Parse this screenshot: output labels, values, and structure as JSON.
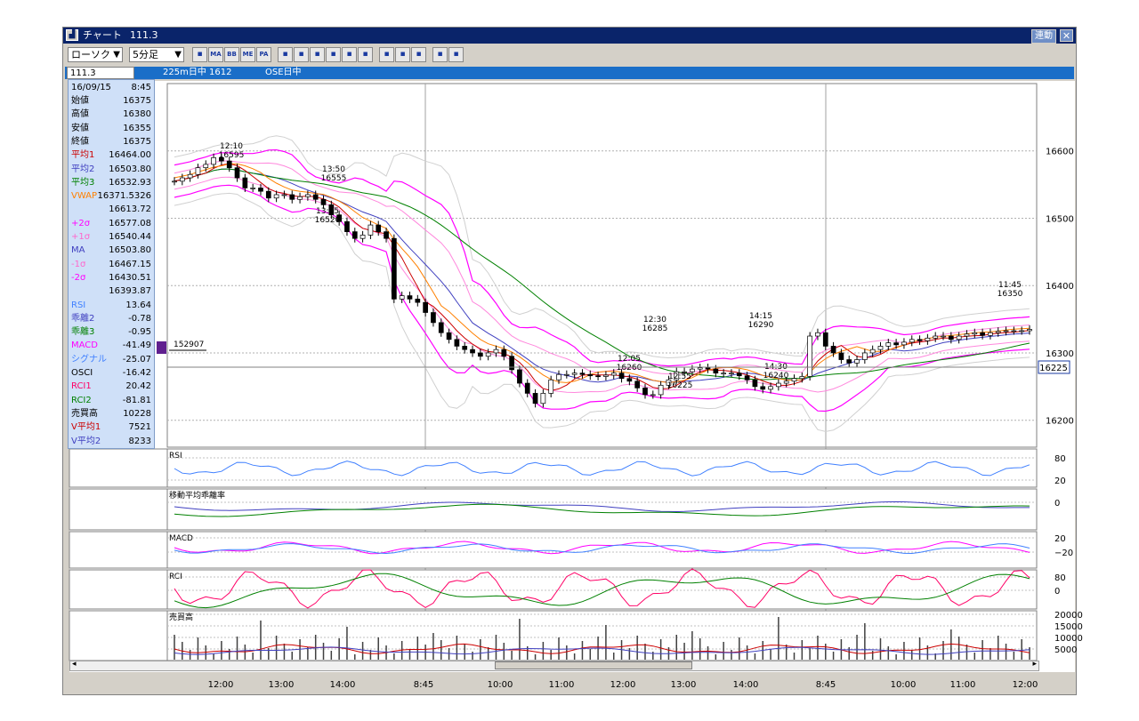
{
  "window": {
    "title": "チャート",
    "symbol_code": "111.3",
    "link_button": "連動",
    "close_icon": "close-icon"
  },
  "toolbar": {
    "chart_type": "ローソク",
    "timeframe": "5分足",
    "buttons": [
      {
        "label": "",
        "icon": "chart-settings-icon"
      },
      {
        "label": "MA",
        "icon": "ma-icon"
      },
      {
        "label": "BB",
        "icon": "bb-icon"
      },
      {
        "label": "ME",
        "icon": "me-icon"
      },
      {
        "label": "PA",
        "icon": "pa-icon"
      },
      {
        "label": "",
        "icon": "trendline-icon"
      },
      {
        "label": "",
        "icon": "chart-icon"
      },
      {
        "label": "",
        "icon": "star-icon"
      },
      {
        "label": "",
        "icon": "zoom-icon"
      },
      {
        "label": "",
        "icon": "grid-icon"
      },
      {
        "label": "",
        "icon": "bars-icon"
      },
      {
        "label": "",
        "icon": "pen-icon"
      },
      {
        "label": "",
        "icon": "cursor-icon"
      },
      {
        "label": "",
        "icon": "eraser-icon"
      },
      {
        "label": "",
        "icon": "search-icon"
      },
      {
        "label": "",
        "icon": "clear-icon"
      }
    ]
  },
  "symbol_bar": {
    "code": "111.3",
    "name1": "225m日中 1612",
    "name2": "OSE日中"
  },
  "info_panel": {
    "date": "16/09/15",
    "time": "8:45",
    "rows": [
      {
        "label": "始値",
        "value": "16375",
        "color": "#000000"
      },
      {
        "label": "高値",
        "value": "16380",
        "color": "#000000"
      },
      {
        "label": "安値",
        "value": "16355",
        "color": "#000000"
      },
      {
        "label": "終値",
        "value": "16375",
        "color": "#000000"
      },
      {
        "label": "平均1",
        "value": "16464.00",
        "color": "#cc0000"
      },
      {
        "label": "平均2",
        "value": "16503.80",
        "color": "#4040c0"
      },
      {
        "label": "平均3",
        "value": "16532.93",
        "color": "#008000"
      },
      {
        "label": "VWAP",
        "value": "16371.5326",
        "color": "#ff8000"
      },
      {
        "label": "",
        "value": "16613.72",
        "color": "#000000"
      },
      {
        "label": "+2σ",
        "value": "16577.08",
        "color": "#ff00ff"
      },
      {
        "label": "+1σ",
        "value": "16540.44",
        "color": "#ff66cc"
      },
      {
        "label": "MA",
        "value": "16503.80",
        "color": "#4040c0"
      },
      {
        "label": "-1σ",
        "value": "16467.15",
        "color": "#ff66cc"
      },
      {
        "label": "-2σ",
        "value": "16430.51",
        "color": "#ff00ff"
      },
      {
        "label": "",
        "value": "16393.87",
        "color": "#000000"
      },
      {
        "label": "RSI",
        "value": "13.64",
        "color": "#4080ff"
      },
      {
        "label": "乖離2",
        "value": "-0.78",
        "color": "#4040c0"
      },
      {
        "label": "乖離3",
        "value": "-0.95",
        "color": "#008000"
      },
      {
        "label": "MACD",
        "value": "-41.49",
        "color": "#ff00ff"
      },
      {
        "label": "シグナル",
        "value": "-25.07",
        "color": "#4080ff"
      },
      {
        "label": "OSCI",
        "value": "-16.42",
        "color": "#000000"
      },
      {
        "label": "RCI1",
        "value": "20.42",
        "color": "#ff0066"
      },
      {
        "label": "RCI2",
        "value": "-81.81",
        "color": "#008000"
      },
      {
        "label": "売買高",
        "value": "10228",
        "color": "#000000"
      },
      {
        "label": "V平均1",
        "value": "7521",
        "color": "#cc0000"
      },
      {
        "label": "V平均2",
        "value": "8233",
        "color": "#4040c0"
      }
    ]
  },
  "price_marker": "152907",
  "current_price": "16225",
  "chart_data": {
    "type": "candlestick",
    "ylim": [
      16160,
      16700
    ],
    "y_ticks": [
      "16600",
      "16500",
      "16400",
      "16300",
      "16200"
    ],
    "x_ticks": [
      "12:00",
      "13:00",
      "14:00",
      "8:45",
      "10:00",
      "11:00",
      "12:00",
      "13:00",
      "14:00",
      "8:45",
      "10:00",
      "11:00",
      "12:00"
    ],
    "annotations": [
      {
        "time": "12:10",
        "price": "16595"
      },
      {
        "time": "13:50",
        "price": "16555"
      },
      {
        "time": "13:45",
        "price": "16520"
      },
      {
        "time": "12:30",
        "price": "16285"
      },
      {
        "time": "14:15",
        "price": "16290"
      },
      {
        "time": "12:05",
        "price": "16260"
      },
      {
        "time": "12:55",
        "price": "16225"
      },
      {
        "time": "14:30",
        "price": "16240"
      },
      {
        "time": "11:45",
        "price": "16350"
      }
    ],
    "candles_close": [
      16555,
      16560,
      16565,
      16575,
      16580,
      16590,
      16585,
      16575,
      16560,
      16545,
      16545,
      16540,
      16530,
      16535,
      16535,
      16528,
      16532,
      16535,
      16528,
      16520,
      16505,
      16495,
      16480,
      16470,
      16475,
      16490,
      16480,
      16470,
      16380,
      16385,
      16380,
      16375,
      16360,
      16345,
      16330,
      16320,
      16310,
      16305,
      16300,
      16295,
      16300,
      16305,
      16295,
      16275,
      16255,
      16240,
      16225,
      16240,
      16260,
      16268,
      16268,
      16270,
      16268,
      16266,
      16265,
      16267,
      16270,
      16262,
      16258,
      16248,
      16238,
      16238,
      16252,
      16260,
      16272,
      16272,
      16276,
      16278,
      16276,
      16270,
      16270,
      16270,
      16266,
      16260,
      16250,
      16246,
      16250,
      16255,
      16258,
      16262,
      16265,
      16325,
      16330,
      16310,
      16300,
      16290,
      16285,
      16290,
      16300,
      16305,
      16310,
      16315,
      16312,
      16316,
      16320,
      16318,
      16322,
      16325,
      16325,
      16320,
      16325,
      16328,
      16330,
      16326,
      16330,
      16332,
      16333,
      16333,
      16333,
      16335
    ],
    "panels": [
      {
        "name": "RSI",
        "ticks": [
          "80",
          "20"
        ]
      },
      {
        "name": "移動平均乖離率",
        "ticks": [
          "0"
        ]
      },
      {
        "name": "MACD",
        "ticks": [
          "20",
          "−20"
        ]
      },
      {
        "name": "RCI",
        "ticks": [
          "80",
          "0"
        ]
      },
      {
        "name": "売買高",
        "ticks": [
          "20000",
          "15000",
          "10000",
          "5000"
        ]
      }
    ]
  }
}
